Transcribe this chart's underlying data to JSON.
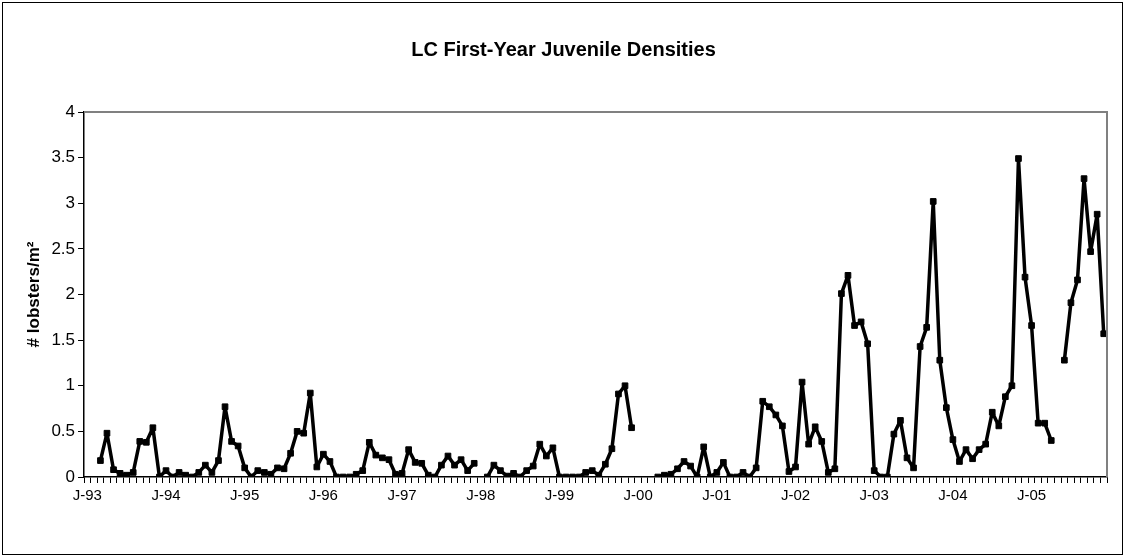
{
  "chart_data": {
    "type": "line",
    "title": "LC First-Year Juvenile Densities",
    "ylabel": "# lobsters/m²",
    "categories": [
      "J-93",
      null,
      null,
      null,
      null,
      null,
      null,
      null,
      null,
      null,
      null,
      null,
      "J-94",
      null,
      null,
      null,
      null,
      null,
      null,
      null,
      null,
      null,
      null,
      null,
      "J-95",
      null,
      null,
      null,
      null,
      null,
      null,
      null,
      null,
      null,
      null,
      null,
      "J-96",
      null,
      null,
      null,
      null,
      null,
      null,
      null,
      null,
      null,
      null,
      null,
      "J-97",
      null,
      null,
      null,
      null,
      null,
      null,
      null,
      null,
      null,
      null,
      null,
      "J-98",
      null,
      null,
      null,
      null,
      null,
      null,
      null,
      null,
      null,
      null,
      null,
      "J-99",
      null,
      null,
      null,
      null,
      null,
      null,
      null,
      null,
      null,
      null,
      null,
      "J-00",
      null,
      null,
      null,
      null,
      null,
      null,
      null,
      null,
      null,
      null,
      null,
      "J-01",
      null,
      null,
      null,
      null,
      null,
      null,
      null,
      null,
      null,
      null,
      null,
      "J-02",
      null,
      null,
      null,
      null,
      null,
      null,
      null,
      null,
      null,
      null,
      null,
      "J-03",
      null,
      null,
      null,
      null,
      null,
      null,
      null,
      null,
      null,
      null,
      null,
      "J-04",
      null,
      null,
      null,
      null,
      null,
      null,
      null,
      null,
      null,
      null,
      null,
      "J-05",
      null,
      null,
      null,
      null,
      null,
      null,
      null,
      null,
      null,
      null,
      null
    ],
    "series": [
      {
        "color": "#000000",
        "values": [
          null,
          null,
          0.18,
          0.48,
          0.08,
          0.04,
          0.02,
          0.05,
          0.39,
          0.38,
          0.54,
          0,
          0.07,
          0,
          0.05,
          0.02,
          0,
          0.05,
          0.13,
          0.05,
          0.18,
          0.77,
          0.39,
          0.34,
          0.1,
          0,
          0.07,
          0.05,
          0.03,
          0.1,
          0.09,
          0.26,
          0.5,
          0.48,
          0.92,
          0.11,
          0.25,
          0.17,
          0,
          0,
          0,
          0.03,
          0.07,
          0.38,
          0.24,
          0.21,
          0.19,
          0.03,
          0.04,
          0.3,
          0.16,
          0.15,
          0.02,
          0,
          0.13,
          0.23,
          0.13,
          0.19,
          0.07,
          0.15,
          null,
          0,
          0.13,
          0.07,
          0.01,
          0.04,
          0,
          0.07,
          0.12,
          0.36,
          0.23,
          0.32,
          0,
          0,
          0,
          0,
          0.05,
          0.07,
          0.02,
          0.14,
          0.31,
          0.91,
          1.0,
          0.54,
          null,
          null,
          null,
          0,
          0.02,
          0.03,
          0.09,
          0.17,
          0.12,
          0,
          0.33,
          0,
          0.05,
          0.16,
          0,
          0,
          0.05,
          0,
          0.1,
          0.83,
          0.77,
          0.68,
          0.56,
          0.06,
          0.11,
          1.04,
          0.36,
          0.55,
          0.39,
          0.05,
          0.09,
          2.01,
          2.21,
          1.66,
          1.7,
          1.46,
          0.07,
          0,
          0,
          0.47,
          0.62,
          0.21,
          0.1,
          1.43,
          1.64,
          3.02,
          1.28,
          0.76,
          0.41,
          0.17,
          0.3,
          0.2,
          0.3,
          0.36,
          0.71,
          0.56,
          0.88,
          1.0,
          3.49,
          2.19,
          1.66,
          0.59,
          0.59,
          0.4,
          null,
          1.28,
          1.91,
          2.16,
          3.27,
          2.47,
          2.88,
          1.57
        ]
      }
    ],
    "ylim": [
      0,
      4
    ],
    "yticks": [
      0,
      0.5,
      1,
      1.5,
      2,
      2.5,
      3,
      3.5,
      4
    ],
    "grid": false,
    "legend": false,
    "marker": "square",
    "line_style": "solid"
  }
}
